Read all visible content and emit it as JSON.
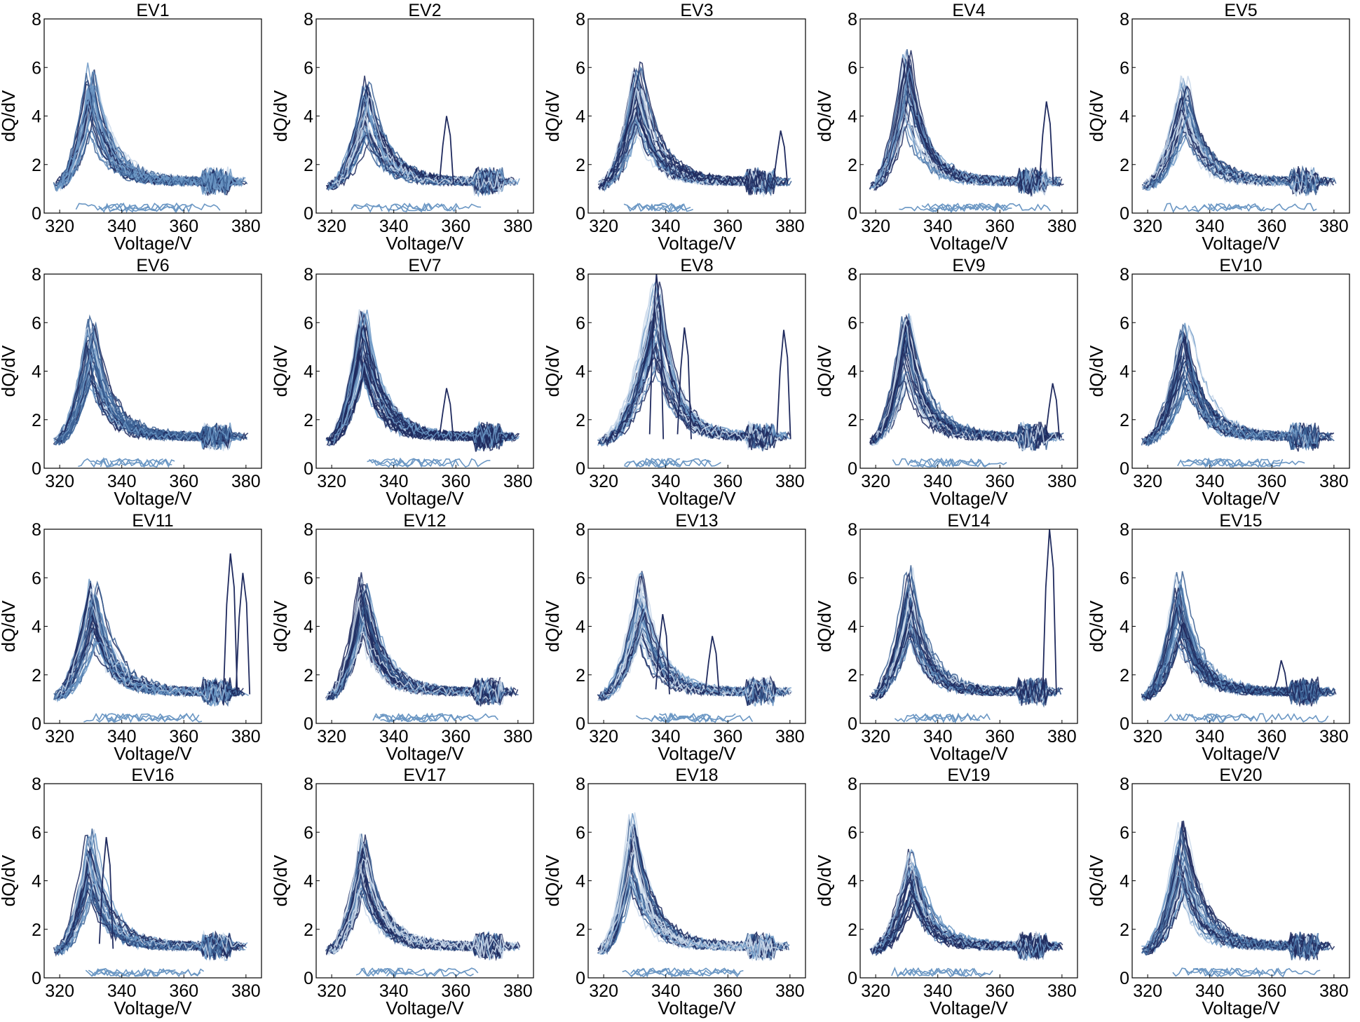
{
  "chart_data": {
    "type": "line",
    "description_note": "",
    "panels": [
      {
        "title": "EV1",
        "peak_value": 6.2,
        "peak_voltage": 330,
        "v_min": 318,
        "v_max": 381,
        "plateau": 1.3,
        "spikes": []
      },
      {
        "title": "EV2",
        "peak_value": 5.6,
        "peak_voltage": 331,
        "v_min": 318,
        "v_max": 381,
        "plateau": 1.3,
        "spikes": [
          {
            "v": 357,
            "value": 4.0
          }
        ]
      },
      {
        "title": "EV3",
        "peak_value": 6.6,
        "peak_voltage": 331,
        "v_min": 318,
        "v_max": 381,
        "plateau": 1.3,
        "spikes": [
          {
            "v": 377,
            "value": 3.4
          }
        ]
      },
      {
        "title": "EV4",
        "peak_value": 6.8,
        "peak_voltage": 330,
        "v_min": 318,
        "v_max": 381,
        "plateau": 1.3,
        "spikes": [
          {
            "v": 375,
            "value": 4.6
          }
        ]
      },
      {
        "title": "EV5",
        "peak_value": 5.8,
        "peak_voltage": 332,
        "v_min": 318,
        "v_max": 381,
        "plateau": 1.3,
        "spikes": []
      },
      {
        "title": "EV6",
        "peak_value": 6.3,
        "peak_voltage": 330,
        "v_min": 318,
        "v_max": 381,
        "plateau": 1.3,
        "spikes": []
      },
      {
        "title": "EV7",
        "peak_value": 6.8,
        "peak_voltage": 330,
        "v_min": 318,
        "v_max": 381,
        "plateau": 1.3,
        "spikes": [
          {
            "v": 357,
            "value": 3.3
          }
        ]
      },
      {
        "title": "EV8",
        "peak_value": 8.0,
        "peak_voltage": 337,
        "v_min": 318,
        "v_max": 381,
        "plateau": 1.3,
        "spikes": [
          {
            "v": 337,
            "value": 8.0
          },
          {
            "v": 346,
            "value": 5.8
          },
          {
            "v": 378,
            "value": 5.7
          }
        ]
      },
      {
        "title": "EV9",
        "peak_value": 6.5,
        "peak_voltage": 330,
        "v_min": 318,
        "v_max": 381,
        "plateau": 1.3,
        "spikes": [
          {
            "v": 377,
            "value": 3.5
          }
        ]
      },
      {
        "title": "EV10",
        "peak_value": 6.2,
        "peak_voltage": 332,
        "v_min": 318,
        "v_max": 381,
        "plateau": 1.3,
        "spikes": []
      },
      {
        "title": "EV11",
        "peak_value": 6.0,
        "peak_voltage": 331,
        "v_min": 318,
        "v_max": 381,
        "plateau": 1.3,
        "spikes": [
          {
            "v": 375,
            "value": 7.0
          },
          {
            "v": 379,
            "value": 6.2
          }
        ]
      },
      {
        "title": "EV12",
        "peak_value": 6.3,
        "peak_voltage": 330,
        "v_min": 318,
        "v_max": 381,
        "plateau": 1.3,
        "spikes": []
      },
      {
        "title": "EV13",
        "peak_value": 6.4,
        "peak_voltage": 332,
        "v_min": 318,
        "v_max": 381,
        "plateau": 1.3,
        "spikes": [
          {
            "v": 339,
            "value": 4.5
          },
          {
            "v": 355,
            "value": 3.6
          }
        ]
      },
      {
        "title": "EV14",
        "peak_value": 6.5,
        "peak_voltage": 331,
        "v_min": 318,
        "v_max": 381,
        "plateau": 1.3,
        "spikes": [
          {
            "v": 376,
            "value": 8.0
          }
        ]
      },
      {
        "title": "EV15",
        "peak_value": 6.3,
        "peak_voltage": 330,
        "v_min": 318,
        "v_max": 381,
        "plateau": 1.3,
        "spikes": [
          {
            "v": 363,
            "value": 2.6
          }
        ]
      },
      {
        "title": "EV16",
        "peak_value": 6.2,
        "peak_voltage": 330,
        "v_min": 318,
        "v_max": 381,
        "plateau": 1.3,
        "spikes": [
          {
            "v": 335,
            "value": 5.8
          }
        ]
      },
      {
        "title": "EV17",
        "peak_value": 6.1,
        "peak_voltage": 330,
        "v_min": 318,
        "v_max": 381,
        "plateau": 1.3,
        "spikes": []
      },
      {
        "title": "EV18",
        "peak_value": 7.1,
        "peak_voltage": 329,
        "v_min": 318,
        "v_max": 381,
        "plateau": 1.3,
        "spikes": []
      },
      {
        "title": "EV19",
        "peak_value": 5.6,
        "peak_voltage": 332,
        "v_min": 318,
        "v_max": 381,
        "plateau": 1.3,
        "spikes": []
      },
      {
        "title": "EV20",
        "peak_value": 6.5,
        "peak_voltage": 331,
        "v_min": 318,
        "v_max": 381,
        "plateau": 1.3,
        "spikes": []
      }
    ],
    "xlabel": "Voltage/V",
    "ylabel": "dQ/dV",
    "xlim": [
      315,
      385
    ],
    "ylim": [
      0,
      8
    ],
    "xticks": [
      320,
      340,
      360,
      380
    ],
    "yticks": [
      0,
      2,
      4,
      6,
      8
    ],
    "grid": false,
    "legend": "none",
    "colors": {
      "dark": "#1f2a5e",
      "mid": "#3a5f93",
      "light": "#6b97c4",
      "pale": "#c9d8ea"
    }
  }
}
